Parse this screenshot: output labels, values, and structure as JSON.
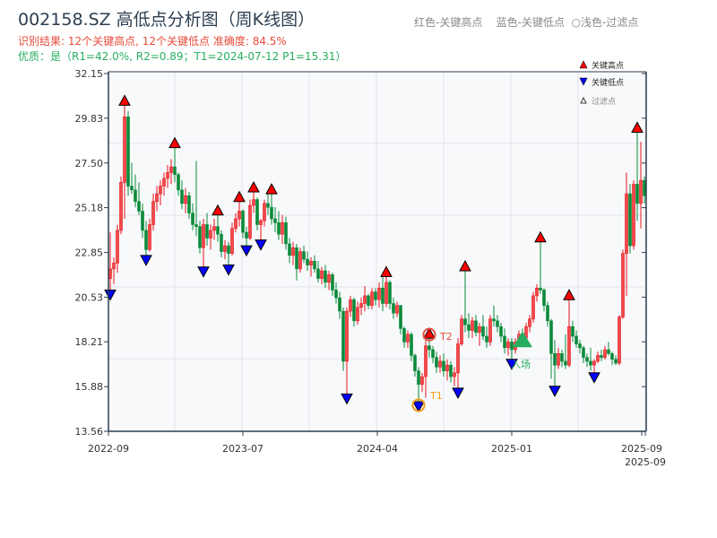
{
  "title": "002158.SZ 高低点分析图（周K线图）",
  "result_line": "识别结果: 12个关键高点, 12个关键低点  准确度: 84.5%",
  "quality_line": "优质：是（R1=42.0%, R2=0.89；T1=2024-07-12 P1=15.31）",
  "top_legend": "红色-关键高点    蓝色-关键低点  ○浅色-过滤点",
  "legend": {
    "high": "关键高点",
    "low": "关键低点",
    "filtered": "过滤点",
    "placement": "top-right"
  },
  "colors": {
    "up": "#e8121b",
    "down": "#0a8a3a",
    "high_marker": "#ff0000",
    "low_marker": "#0000ff",
    "t1": "#f39c12",
    "t2": "#e74c3c",
    "entry": "#27ae60"
  },
  "annotations": {
    "t1": "T1",
    "t2": "T2",
    "entry": "入场"
  },
  "chart_data": {
    "type": "candlestick",
    "ylim": [
      13.56,
      32.15
    ],
    "yticks": [
      "13.56",
      "15.88",
      "18.21",
      "20.53",
      "22.85",
      "25.18",
      "27.50",
      "29.83",
      "32.15"
    ],
    "xticks": [
      "2022-09",
      "2023-07",
      "2024-04",
      "2025-01",
      "2025-09",
      "2025-09"
    ],
    "grid": true,
    "ohlc": [
      [
        21.5,
        23.9,
        20.9,
        22.0
      ],
      [
        22.0,
        22.6,
        21.2,
        22.3
      ],
      [
        22.3,
        24.3,
        21.8,
        24.0
      ],
      [
        24.0,
        26.8,
        23.8,
        26.5
      ],
      [
        26.5,
        30.5,
        24.6,
        29.9
      ],
      [
        29.9,
        30.2,
        25.8,
        26.3
      ],
      [
        26.3,
        27.5,
        25.9,
        26.1
      ],
      [
        26.1,
        26.9,
        25.2,
        25.5
      ],
      [
        25.5,
        26.5,
        24.8,
        25.0
      ],
      [
        25.0,
        25.4,
        23.6,
        24.0
      ],
      [
        24.0,
        24.5,
        22.7,
        23.0
      ],
      [
        23.0,
        24.6,
        22.9,
        24.3
      ],
      [
        24.3,
        25.9,
        24.0,
        25.5
      ],
      [
        25.5,
        26.3,
        25.0,
        25.9
      ],
      [
        25.9,
        26.6,
        25.3,
        26.3
      ],
      [
        26.3,
        27.0,
        25.8,
        26.7
      ],
      [
        26.7,
        27.4,
        26.2,
        27.0
      ],
      [
        27.0,
        27.7,
        26.4,
        27.3
      ],
      [
        27.3,
        28.3,
        26.5,
        26.9
      ],
      [
        26.9,
        27.0,
        25.8,
        26.1
      ],
      [
        26.1,
        26.6,
        25.1,
        25.4
      ],
      [
        25.4,
        26.2,
        24.9,
        25.8
      ],
      [
        25.8,
        26.0,
        24.6,
        24.9
      ],
      [
        24.9,
        25.4,
        24.0,
        24.3
      ],
      [
        24.3,
        27.6,
        23.7,
        24.2
      ],
      [
        24.2,
        24.5,
        22.8,
        23.1
      ],
      [
        23.1,
        24.6,
        22.1,
        24.3
      ],
      [
        24.3,
        24.9,
        23.2,
        23.6
      ],
      [
        23.6,
        24.3,
        23.0,
        24.0
      ],
      [
        24.0,
        24.6,
        23.5,
        24.2
      ],
      [
        24.2,
        24.8,
        23.4,
        23.8
      ],
      [
        23.8,
        24.0,
        22.6,
        22.9
      ],
      [
        22.9,
        23.5,
        22.5,
        23.2
      ],
      [
        23.2,
        23.4,
        22.2,
        22.8
      ],
      [
        22.8,
        24.4,
        22.7,
        24.1
      ],
      [
        24.1,
        24.9,
        23.9,
        24.6
      ],
      [
        24.6,
        25.5,
        24.2,
        25.0
      ],
      [
        25.0,
        25.1,
        23.6,
        23.9
      ],
      [
        23.9,
        24.2,
        23.2,
        23.6
      ],
      [
        23.6,
        25.6,
        23.5,
        25.3
      ],
      [
        25.3,
        26.0,
        24.9,
        25.6
      ],
      [
        25.6,
        25.7,
        24.0,
        24.3
      ],
      [
        24.3,
        24.6,
        23.5,
        24.5
      ],
      [
        24.5,
        25.6,
        24.2,
        25.4
      ],
      [
        25.4,
        25.9,
        24.8,
        25.2
      ],
      [
        25.2,
        25.9,
        24.3,
        24.6
      ],
      [
        24.6,
        25.2,
        23.9,
        24.4
      ],
      [
        24.4,
        25.0,
        23.5,
        23.8
      ],
      [
        23.8,
        24.8,
        23.3,
        24.4
      ],
      [
        24.4,
        24.7,
        23.0,
        23.3
      ],
      [
        23.3,
        23.6,
        22.3,
        22.7
      ],
      [
        22.7,
        23.4,
        22.2,
        23.1
      ],
      [
        23.1,
        23.3,
        21.4,
        22.0
      ],
      [
        22.0,
        23.1,
        21.8,
        22.9
      ],
      [
        22.9,
        23.2,
        22.3,
        22.5
      ],
      [
        22.5,
        22.9,
        21.9,
        22.2
      ],
      [
        22.2,
        22.6,
        21.6,
        22.4
      ],
      [
        22.4,
        22.7,
        21.8,
        22.0
      ],
      [
        22.0,
        22.4,
        21.3,
        21.5
      ],
      [
        21.5,
        22.1,
        21.2,
        21.9
      ],
      [
        21.9,
        22.2,
        21.0,
        21.3
      ],
      [
        21.3,
        21.9,
        20.9,
        21.7
      ],
      [
        21.7,
        21.8,
        20.6,
        20.9
      ],
      [
        20.9,
        21.3,
        20.2,
        20.5
      ],
      [
        20.5,
        20.8,
        19.4,
        19.8
      ],
      [
        19.8,
        20.0,
        16.7,
        17.2
      ],
      [
        17.2,
        20.0,
        15.5,
        19.8
      ],
      [
        19.8,
        20.6,
        19.5,
        20.4
      ],
      [
        20.4,
        20.5,
        19.0,
        19.3
      ],
      [
        19.3,
        20.3,
        19.1,
        20.0
      ],
      [
        20.0,
        20.5,
        19.6,
        20.2
      ],
      [
        20.2,
        21.1,
        19.8,
        20.6
      ],
      [
        20.6,
        20.7,
        19.9,
        20.1
      ],
      [
        20.1,
        21.0,
        19.9,
        20.8
      ],
      [
        20.8,
        21.0,
        20.1,
        20.4
      ],
      [
        20.4,
        21.3,
        20.0,
        21.0
      ],
      [
        21.0,
        21.6,
        19.8,
        20.2
      ],
      [
        20.2,
        21.6,
        20.0,
        21.3
      ],
      [
        21.3,
        21.4,
        19.9,
        20.2
      ],
      [
        20.2,
        20.5,
        19.4,
        19.7
      ],
      [
        19.7,
        20.3,
        19.5,
        20.1
      ],
      [
        20.1,
        20.1,
        18.6,
        18.9
      ],
      [
        18.9,
        19.0,
        17.9,
        18.2
      ],
      [
        18.2,
        18.8,
        17.9,
        18.6
      ],
      [
        18.6,
        18.7,
        17.2,
        17.5
      ],
      [
        17.5,
        17.6,
        16.4,
        16.7
      ],
      [
        16.7,
        16.9,
        15.1,
        16.0
      ],
      [
        16.0,
        16.6,
        15.6,
        16.4
      ],
      [
        16.4,
        18.3,
        15.3,
        18.0
      ],
      [
        18.0,
        18.4,
        17.4,
        17.8
      ],
      [
        17.8,
        18.0,
        17.1,
        17.4
      ],
      [
        17.4,
        17.7,
        16.6,
        16.9
      ],
      [
        16.9,
        17.5,
        16.6,
        17.2
      ],
      [
        17.2,
        17.6,
        16.4,
        16.7
      ],
      [
        16.7,
        17.3,
        16.2,
        17.0
      ],
      [
        17.0,
        17.2,
        16.1,
        16.4
      ],
      [
        16.4,
        16.9,
        15.9,
        16.6
      ],
      [
        16.6,
        18.4,
        15.8,
        18.1
      ],
      [
        18.1,
        19.6,
        18.0,
        19.4
      ],
      [
        19.4,
        21.9,
        18.7,
        19.1
      ],
      [
        19.1,
        19.7,
        18.4,
        18.8
      ],
      [
        18.8,
        19.5,
        18.4,
        19.3
      ],
      [
        19.3,
        19.6,
        18.5,
        18.7
      ],
      [
        18.7,
        19.2,
        18.0,
        19.0
      ],
      [
        19.0,
        19.6,
        18.3,
        18.5
      ],
      [
        18.5,
        19.0,
        17.9,
        18.2
      ],
      [
        18.2,
        19.6,
        18.0,
        19.4
      ],
      [
        19.4,
        20.1,
        19.0,
        19.3
      ],
      [
        19.3,
        19.6,
        18.7,
        19.0
      ],
      [
        19.0,
        19.2,
        18.2,
        18.5
      ],
      [
        18.5,
        18.9,
        17.6,
        17.9
      ],
      [
        17.9,
        18.4,
        17.5,
        18.2
      ],
      [
        18.2,
        18.4,
        17.3,
        17.8
      ],
      [
        17.8,
        18.4,
        17.6,
        18.2
      ],
      [
        18.2,
        18.8,
        18.0,
        18.6
      ],
      [
        18.6,
        18.9,
        18.2,
        18.4
      ],
      [
        18.4,
        19.2,
        18.3,
        19.0
      ],
      [
        19.0,
        19.6,
        18.7,
        19.4
      ],
      [
        19.4,
        20.8,
        19.2,
        20.6
      ],
      [
        20.6,
        21.2,
        20.3,
        21.0
      ],
      [
        21.0,
        23.4,
        20.7,
        20.9
      ],
      [
        20.9,
        21.0,
        19.8,
        20.1
      ],
      [
        20.1,
        20.3,
        19.0,
        19.3
      ],
      [
        19.3,
        19.4,
        16.3,
        17.6
      ],
      [
        17.6,
        18.3,
        15.9,
        17.0
      ],
      [
        17.0,
        17.9,
        16.8,
        17.6
      ],
      [
        17.6,
        17.8,
        16.9,
        17.2
      ],
      [
        17.2,
        18.6,
        16.8,
        17.0
      ],
      [
        17.0,
        20.4,
        16.9,
        19.0
      ],
      [
        19.0,
        19.3,
        18.2,
        18.5
      ],
      [
        18.5,
        18.8,
        17.9,
        18.1
      ],
      [
        18.1,
        18.3,
        17.6,
        17.9
      ],
      [
        17.9,
        18.0,
        17.1,
        17.4
      ],
      [
        17.4,
        17.6,
        16.9,
        17.2
      ],
      [
        17.2,
        17.9,
        16.7,
        17.0
      ],
      [
        17.0,
        17.3,
        16.6,
        17.2
      ],
      [
        17.2,
        17.7,
        17.1,
        17.5
      ],
      [
        17.5,
        17.8,
        17.2,
        17.4
      ],
      [
        17.4,
        18.0,
        17.3,
        17.8
      ],
      [
        17.8,
        18.2,
        17.5,
        17.6
      ],
      [
        17.6,
        17.7,
        17.0,
        17.3
      ],
      [
        17.3,
        17.5,
        17.0,
        17.1
      ],
      [
        17.1,
        19.6,
        17.0,
        19.5
      ],
      [
        19.5,
        23.0,
        19.4,
        22.8
      ],
      [
        22.8,
        27.0,
        20.6,
        25.9
      ],
      [
        25.9,
        26.4,
        22.8,
        23.2
      ],
      [
        23.2,
        26.6,
        23.0,
        26.4
      ],
      [
        26.4,
        29.1,
        24.5,
        25.4
      ],
      [
        25.4,
        28.6,
        24.1,
        26.6
      ],
      [
        26.6,
        26.8,
        25.4,
        25.8
      ]
    ],
    "key_highs": [
      4,
      18,
      30,
      36,
      40,
      45,
      77,
      89,
      99,
      120,
      128,
      147
    ],
    "key_lows": [
      0,
      10,
      26,
      33,
      38,
      42,
      66,
      86,
      97,
      112,
      124,
      135
    ],
    "t1_index": 86,
    "t2_index": 89,
    "entry": {
      "index": 115,
      "price": 18.3
    }
  }
}
